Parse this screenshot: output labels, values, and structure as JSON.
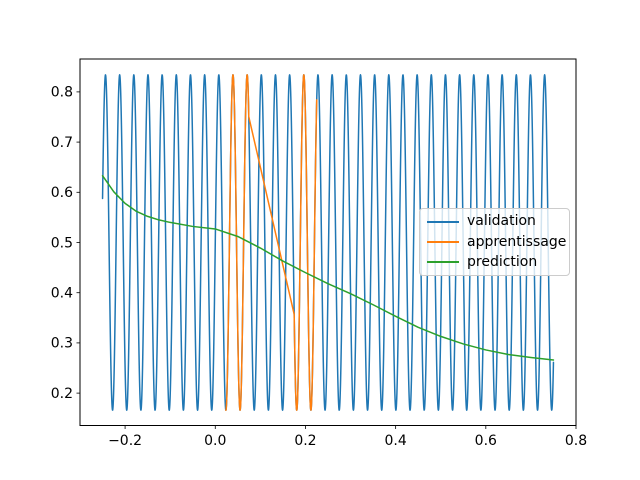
{
  "chart_data": {
    "type": "line",
    "title": "",
    "xlabel": "",
    "ylabel": "",
    "grid": false,
    "background": "#ffffff",
    "xlim": [
      -0.3,
      0.8
    ],
    "ylim": [
      0.1355,
      0.8655
    ],
    "x_ticks": [
      {
        "value": -0.2,
        "label": "−0.2"
      },
      {
        "value": 0.0,
        "label": "0.0"
      },
      {
        "value": 0.2,
        "label": "0.2"
      },
      {
        "value": 0.4,
        "label": "0.4"
      },
      {
        "value": 0.6,
        "label": "0.6"
      },
      {
        "value": 0.8,
        "label": "0.8"
      }
    ],
    "y_ticks": [
      {
        "value": 0.2,
        "label": "0.2"
      },
      {
        "value": 0.3,
        "label": "0.3"
      },
      {
        "value": 0.4,
        "label": "0.4"
      },
      {
        "value": 0.5,
        "label": "0.5"
      },
      {
        "value": 0.6,
        "label": "0.6"
      },
      {
        "value": 0.7,
        "label": "0.7"
      },
      {
        "value": 0.8,
        "label": "0.8"
      }
    ],
    "legend": {
      "location": "center right",
      "entries": [
        {
          "label": "validation",
          "color": "#1f77b4"
        },
        {
          "label": "apprentissage",
          "color": "#ff7f0e"
        },
        {
          "label": "prediction",
          "color": "#2ca02c"
        }
      ]
    },
    "series": [
      {
        "name": "validation",
        "color": "#1f77b4",
        "line_width": 1.5,
        "kind": "sine",
        "mean": 0.5,
        "amplitude": 0.334,
        "angular_frequency": 200,
        "x_ranges": [
          [
            -0.25,
            0.75
          ]
        ],
        "sample_step": 0.0004,
        "y_min": 0.166,
        "y_max": 0.834
      },
      {
        "name": "apprentissage",
        "color": "#ff7f0e",
        "line_width": 1.5,
        "kind": "sine",
        "mean": 0.5,
        "amplitude": 0.334,
        "angular_frequency": 200,
        "x_ranges": [
          [
            0.0235,
            0.0745
          ],
          [
            0.175,
            0.225
          ]
        ],
        "sample_step": 0.0004,
        "y_min": 0.166,
        "y_max": 0.834
      },
      {
        "name": "prediction",
        "color": "#2ca02c",
        "line_width": 1.5,
        "kind": "points",
        "points": [
          [
            -0.25,
            0.633
          ],
          [
            -0.225,
            0.601
          ],
          [
            -0.2,
            0.578
          ],
          [
            -0.175,
            0.562
          ],
          [
            -0.15,
            0.552
          ],
          [
            -0.125,
            0.545
          ],
          [
            -0.1,
            0.54
          ],
          [
            -0.05,
            0.532
          ],
          [
            0.0,
            0.527
          ],
          [
            0.05,
            0.512
          ],
          [
            0.1,
            0.489
          ],
          [
            0.15,
            0.463
          ],
          [
            0.2,
            0.44
          ],
          [
            0.25,
            0.418
          ],
          [
            0.3,
            0.398
          ],
          [
            0.35,
            0.376
          ],
          [
            0.4,
            0.353
          ],
          [
            0.45,
            0.331
          ],
          [
            0.5,
            0.313
          ],
          [
            0.55,
            0.298
          ],
          [
            0.6,
            0.286
          ],
          [
            0.65,
            0.277
          ],
          [
            0.7,
            0.271
          ],
          [
            0.75,
            0.266
          ]
        ]
      }
    ]
  }
}
